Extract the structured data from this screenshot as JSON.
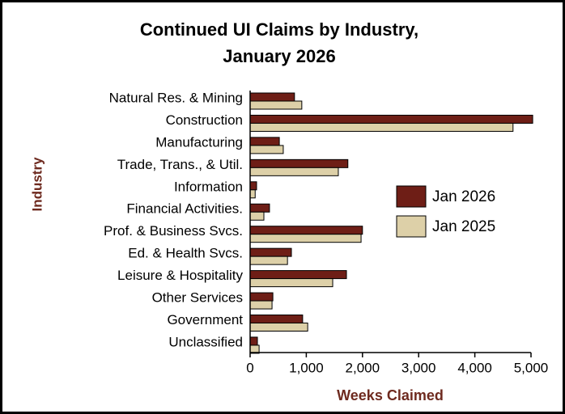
{
  "chart_data": {
    "type": "hbar",
    "title": [
      "Continued UI Claims by Industry,",
      "January 2026"
    ],
    "y_label": "Industry",
    "x_label": "Weeks Claimed",
    "categories": [
      "Natural Res. & Mining",
      "Construction",
      "Manufacturing",
      "Trade, Trans., & Util.",
      "Information",
      "Financial Activities.",
      "Prof. & Business Svcs.",
      "Ed. & Health Svcs.",
      "Leisure & Hospitality",
      "Other Services",
      "Government",
      "Unclassified"
    ],
    "series": [
      {
        "name": "Jan 2026",
        "color": "#6e1e16",
        "values": [
          790,
          5030,
          520,
          1740,
          115,
          345,
          2000,
          735,
          1715,
          405,
          935,
          130
        ]
      },
      {
        "name": "Jan 2025",
        "color": "#ddd0a8",
        "values": [
          920,
          4680,
          590,
          1570,
          90,
          245,
          1975,
          665,
          1470,
          390,
          1025,
          160
        ]
      }
    ],
    "xlim": [
      0,
      5000
    ],
    "xticks": [
      0,
      {
        "value": 1000,
        "label": "1,000"
      },
      {
        "value": 2000,
        "label": "2,000"
      },
      {
        "value": 3000,
        "label": "3,000"
      },
      {
        "value": 4000,
        "label": "4,000"
      },
      {
        "value": 5000,
        "label": "5,000"
      }
    ],
    "legend": "right"
  }
}
